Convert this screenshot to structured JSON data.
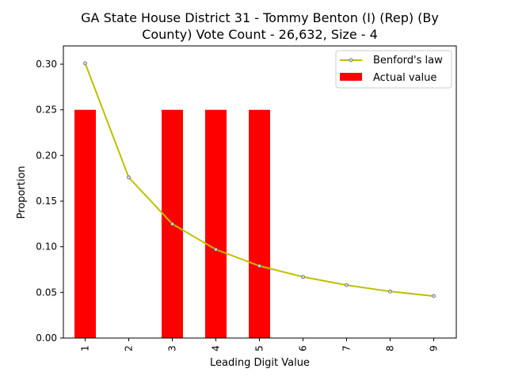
{
  "chart_data": {
    "type": "bar",
    "title_line1": "GA State House District 31 - Tommy Benton (I) (Rep) (By",
    "title_line2": "County) Vote Count - 26,632, Size - 4",
    "xlabel": "Leading Digit Value",
    "ylabel": "Proportion",
    "categories": [
      "1",
      "2",
      "3",
      "4",
      "5",
      "6",
      "7",
      "8",
      "9"
    ],
    "ylim": [
      0,
      0.32
    ],
    "yticks": [
      "0.00",
      "0.05",
      "0.10",
      "0.15",
      "0.20",
      "0.25",
      "0.30"
    ],
    "grid": false,
    "legend_position": "top-right",
    "series": [
      {
        "name": "Benford's law",
        "kind": "line",
        "color": "#bfbf00",
        "values": [
          0.301,
          0.176,
          0.125,
          0.097,
          0.079,
          0.067,
          0.058,
          0.051,
          0.046
        ]
      },
      {
        "name": "Actual value",
        "kind": "bar",
        "color": "#ff0000",
        "values": [
          0.25,
          0.0,
          0.25,
          0.25,
          0.25,
          0.0,
          0.0,
          0.0,
          0.0
        ]
      }
    ]
  }
}
